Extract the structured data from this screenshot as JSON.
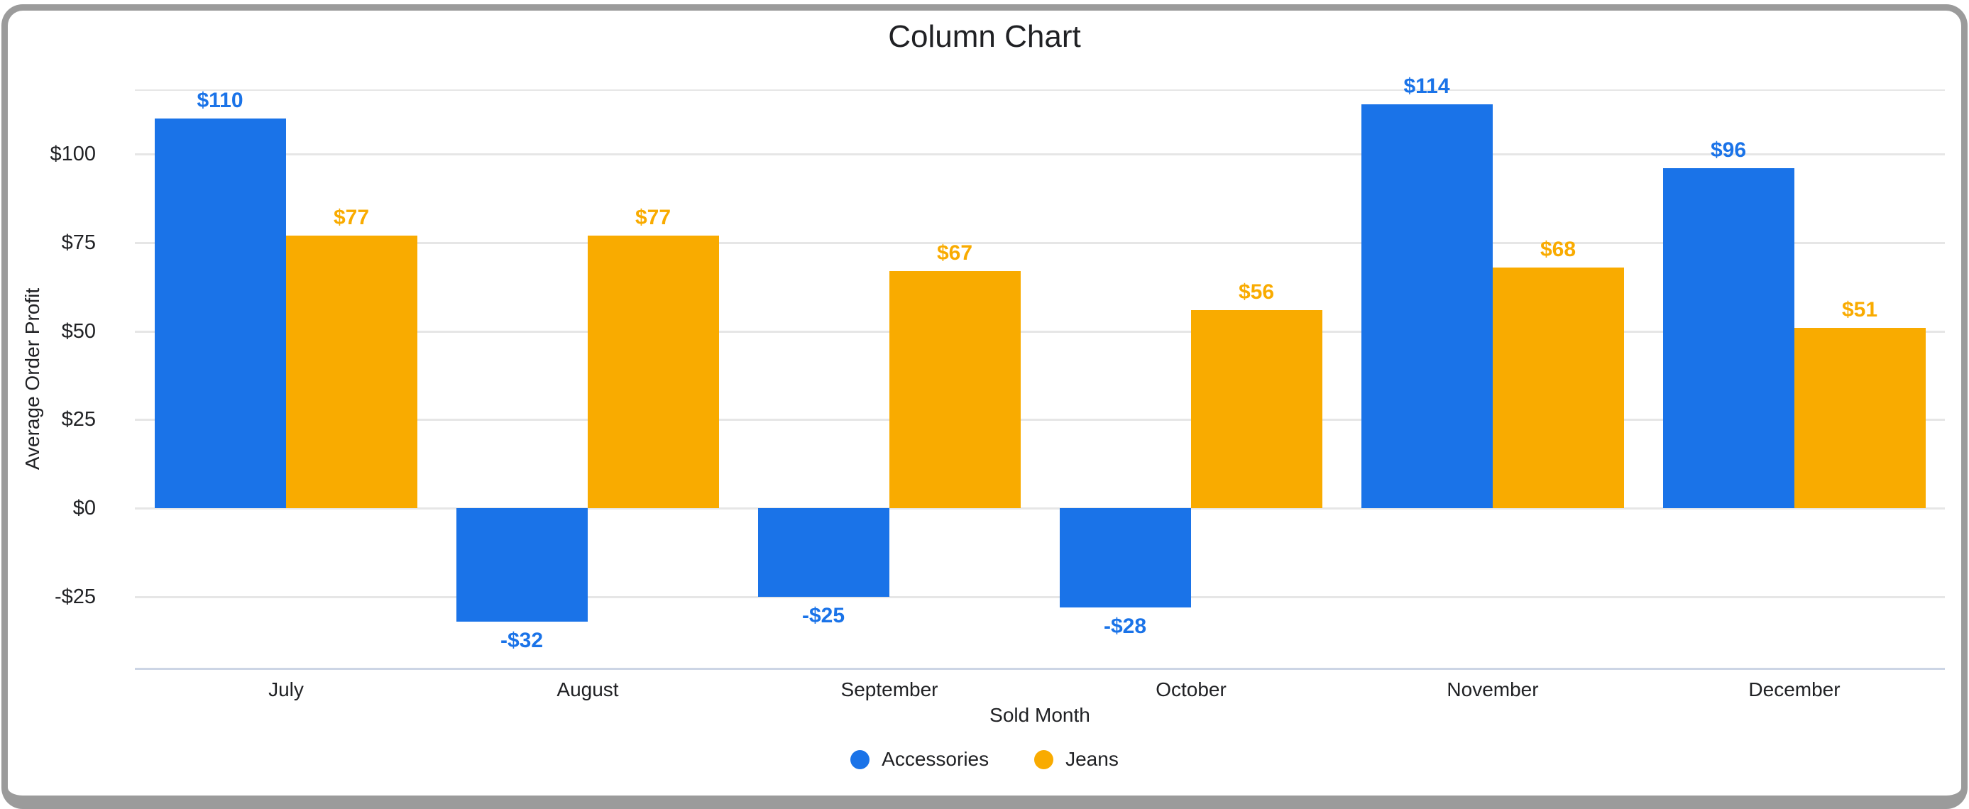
{
  "window": {
    "background": "#ffffff",
    "border_color": "#9b9b9b"
  },
  "chart_data": {
    "type": "bar",
    "title": "Column Chart",
    "xlabel": "Sold Month",
    "ylabel": "Average Order Profit",
    "categories": [
      "July",
      "August",
      "September",
      "October",
      "November",
      "December"
    ],
    "series": [
      {
        "name": "Accessories",
        "color": "#1a73e8",
        "values": [
          110,
          -32,
          -25,
          -28,
          114,
          96
        ],
        "labels": [
          "$110",
          "-$32",
          "-$25",
          "-$28",
          "$114",
          "$96"
        ]
      },
      {
        "name": "Jeans",
        "color": "#f9ab00",
        "values": [
          77,
          77,
          67,
          56,
          68,
          51
        ],
        "labels": [
          "$77",
          "$77",
          "$67",
          "$56",
          "$68",
          "$51"
        ]
      }
    ],
    "y_ticks": [
      {
        "label": "$100",
        "value": 100
      },
      {
        "label": "$75",
        "value": 75
      },
      {
        "label": "$50",
        "value": 50
      },
      {
        "label": "$25",
        "value": 25
      },
      {
        "label": "$0",
        "value": 0
      },
      {
        "label": "-$25",
        "value": -25
      }
    ],
    "ylim": [
      -45,
      120
    ],
    "grid": true,
    "legend_position": "bottom",
    "legend": [
      {
        "label": "Accessories",
        "color": "#1a73e8"
      },
      {
        "label": "Jeans",
        "color": "#f9ab00"
      }
    ],
    "colors": {
      "grid_line": "#e6e6e6",
      "axis_line": "#ccd5e5",
      "text": "#202124"
    }
  }
}
